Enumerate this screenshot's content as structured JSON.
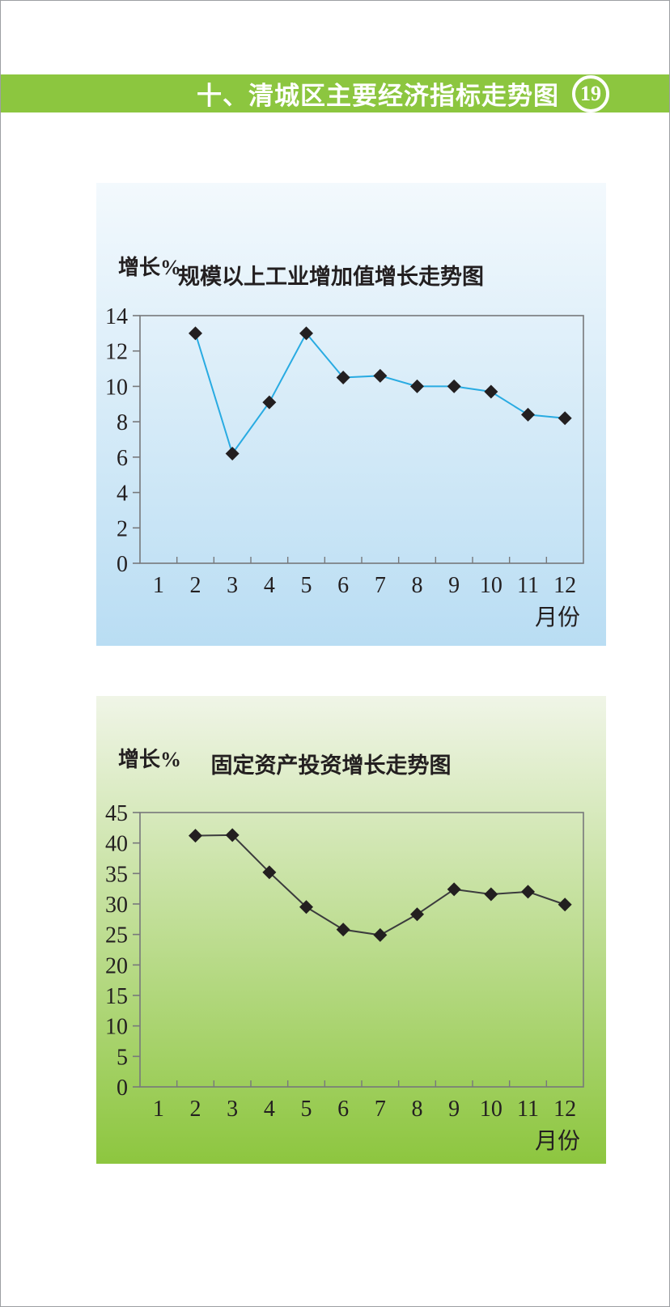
{
  "header": {
    "title": "十、清城区主要经济指标走势图",
    "page_number": "19"
  },
  "colors": {
    "header_green": "#8cc63f",
    "badge_text": "#ffffff",
    "page_border": "#9d9fa2",
    "tick_text": "#231f20"
  },
  "chart_data": [
    {
      "type": "line",
      "title": "规模以上工业增加值增长走势图",
      "ylabel": "增长%",
      "xlabel": "月份",
      "categories": [
        "1",
        "2",
        "3",
        "4",
        "5",
        "6",
        "7",
        "8",
        "9",
        "10",
        "11",
        "12"
      ],
      "values": [
        null,
        13.0,
        6.2,
        9.1,
        13.0,
        10.5,
        10.6,
        10.0,
        10.0,
        9.7,
        8.4,
        8.2
      ],
      "ylim": [
        0,
        14
      ],
      "ytick_step": 2,
      "grid": false,
      "legend": "none",
      "line_color": "#29abe2",
      "marker": "diamond",
      "marker_color": "#231f20",
      "axis_color": "#77787b",
      "panel_gradient": [
        "#f3f9fd",
        "#b9ddf3"
      ]
    },
    {
      "type": "line",
      "title": "固定资产投资增长走势图",
      "ylabel": "增长%",
      "xlabel": "月份",
      "categories": [
        "1",
        "2",
        "3",
        "4",
        "5",
        "6",
        "7",
        "8",
        "9",
        "10",
        "11",
        "12"
      ],
      "values": [
        null,
        41.2,
        41.3,
        35.2,
        29.5,
        25.8,
        24.9,
        28.3,
        32.4,
        31.6,
        32.0,
        29.9
      ],
      "ylim": [
        0,
        45
      ],
      "ytick_step": 5,
      "grid": false,
      "legend": "none",
      "line_color": "#3b3b3d",
      "marker": "diamond",
      "marker_color": "#231f20",
      "axis_color": "#77787b",
      "panel_gradient": [
        "#f0f5e7",
        "#8dc63f"
      ]
    }
  ]
}
